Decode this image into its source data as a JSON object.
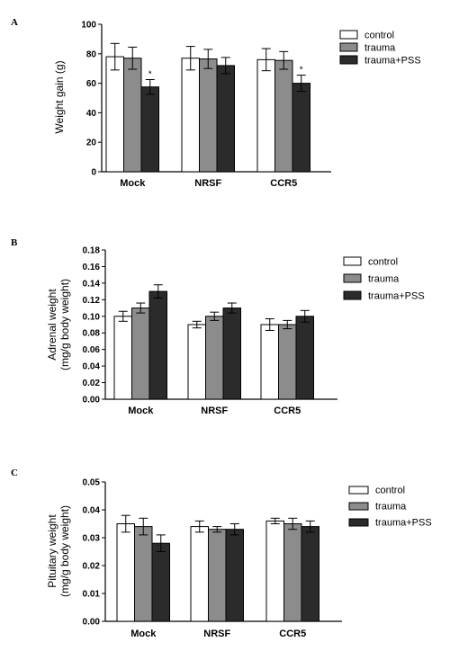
{
  "chart_data": [
    {
      "panel_label": "A",
      "type": "bar",
      "categories": [
        "Mock",
        "NRSF",
        "CCR5"
      ],
      "ylabel": "Weight gain (g)",
      "ylim": [
        0,
        100
      ],
      "yticks": [
        "0",
        "20",
        "40",
        "60",
        "80",
        "100"
      ],
      "series": [
        {
          "name": "control",
          "values": [
            78,
            77,
            76
          ],
          "errors": [
            9,
            8,
            7.5
          ]
        },
        {
          "name": "trauma",
          "values": [
            77,
            76.5,
            75.5
          ],
          "errors": [
            7.5,
            6.5,
            6
          ]
        },
        {
          "name": "trauma+PSS",
          "values": [
            57.5,
            72,
            60
          ],
          "errors": [
            5,
            5.5,
            5.5
          ]
        }
      ],
      "annotations": [
        {
          "category": "Mock",
          "series": "trauma+PSS",
          "text": "*"
        },
        {
          "category": "CCR5",
          "series": "trauma+PSS",
          "text": "*"
        }
      ],
      "legend_position": "top-right"
    },
    {
      "panel_label": "B",
      "type": "bar",
      "categories": [
        "Mock",
        "NRSF",
        "CCR5"
      ],
      "ylabel": [
        "Adrenal weight",
        "(mg/g body weight)"
      ],
      "ylim": [
        0,
        0.18
      ],
      "yticks": [
        "0.00",
        "0.02",
        "0.04",
        "0.06",
        "0.08",
        "0.10",
        "0.12",
        "0.14",
        "0.16",
        "0.18"
      ],
      "series": [
        {
          "name": "control",
          "values": [
            0.1,
            0.09,
            0.09
          ],
          "errors": [
            0.006,
            0.004,
            0.007
          ]
        },
        {
          "name": "trauma",
          "values": [
            0.11,
            0.1,
            0.09
          ],
          "errors": [
            0.006,
            0.005,
            0.005
          ]
        },
        {
          "name": "trauma+PSS",
          "values": [
            0.13,
            0.11,
            0.1
          ],
          "errors": [
            0.008,
            0.006,
            0.007
          ]
        }
      ],
      "legend_position": "top-right"
    },
    {
      "panel_label": "C",
      "type": "bar",
      "categories": [
        "Mock",
        "NRSF",
        "CCR5"
      ],
      "ylabel": [
        "Pituitary weight",
        "(mg/g body weight)"
      ],
      "ylim": [
        0,
        0.05
      ],
      "yticks": [
        "0.00",
        "0.01",
        "0.02",
        "0.03",
        "0.04",
        "0.05"
      ],
      "series": [
        {
          "name": "control",
          "values": [
            0.035,
            0.034,
            0.036
          ],
          "errors": [
            0.003,
            0.002,
            0.001
          ]
        },
        {
          "name": "trauma",
          "values": [
            0.034,
            0.033,
            0.035
          ],
          "errors": [
            0.003,
            0.001,
            0.002
          ]
        },
        {
          "name": "trauma+PSS",
          "values": [
            0.028,
            0.033,
            0.034
          ],
          "errors": [
            0.003,
            0.002,
            0.002
          ]
        }
      ],
      "legend_position": "top-right"
    }
  ],
  "colors": {
    "control": "#ffffff",
    "trauma": "#8c8c8c",
    "trauma+PSS": "#2b2b2b",
    "stroke": "#000000"
  }
}
